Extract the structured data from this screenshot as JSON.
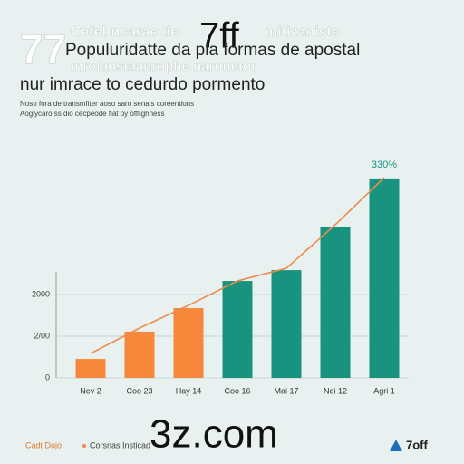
{
  "header": {
    "logo": "77",
    "overlay_text": "Cefebncarae de",
    "overlay_text_right": "mitizaniste",
    "brand": "7ff",
    "overlay_text_2": "mrolanstaanrophe naronetor"
  },
  "chart_data": {
    "type": "bar",
    "title": "Populuridatte da pla formas de apostal",
    "subtitle": "nur imrace to cedurdo pormento",
    "notes": [
      "Noso fora de transmfiter aoso saro senais coreentions",
      "Aoglycaro ss dio cecpeode fiat py offlighness"
    ],
    "categories": [
      "Nev 2",
      "Coo 23",
      "Hay 14",
      "Coo 16",
      "Mai 17",
      "Nei 12",
      "Agri 1"
    ],
    "series": [
      {
        "name": "Cadt Dojo",
        "type": "bar",
        "colors": [
          "#f7873a",
          "#f7873a",
          "#f7873a",
          "#17937f",
          "#17937f",
          "#17937f",
          "#17937f"
        ],
        "values": [
          91,
          222,
          335,
          465,
          517,
          722,
          957
        ]
      },
      {
        "name": "Corsnas Insticad",
        "type": "line",
        "color": "#f08a4b",
        "values": [
          117,
          239,
          348,
          465,
          526,
          735,
          961
        ]
      }
    ],
    "annotation": "330%",
    "ylim": [
      0,
      1000
    ],
    "yticks": [
      0,
      {
        "value": 200,
        "label": "2/00"
      },
      {
        "value": 400,
        "label": "2000"
      }
    ],
    "grid": true
  },
  "footer": {
    "watermark": "3z.com",
    "logo": "7off"
  }
}
